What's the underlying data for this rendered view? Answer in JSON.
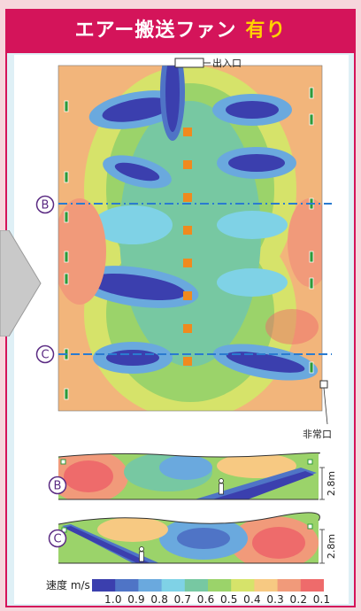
{
  "header": {
    "title": "エアー搬送ファン",
    "accent": "有り"
  },
  "plan": {
    "entrance_label": "出入口",
    "emergency_exit_label": "非常口",
    "section_b": "B",
    "section_c": "C"
  },
  "sections": [
    {
      "marker": "B",
      "height_label": "2.8m"
    },
    {
      "marker": "C",
      "height_label": "2.8m"
    }
  ],
  "legend": {
    "label": "速度 m/s",
    "values": [
      "1.0",
      "0.9",
      "0.8",
      "0.7",
      "0.6",
      "0.5",
      "0.4",
      "0.3",
      "0.2",
      "0.1"
    ],
    "colors": [
      "#3b3fae",
      "#4f74c6",
      "#6aa9de",
      "#7fd2e6",
      "#77c8a2",
      "#9bd36a",
      "#d6e36a",
      "#f7c982",
      "#f19a7a",
      "#ee6b6b"
    ]
  }
}
